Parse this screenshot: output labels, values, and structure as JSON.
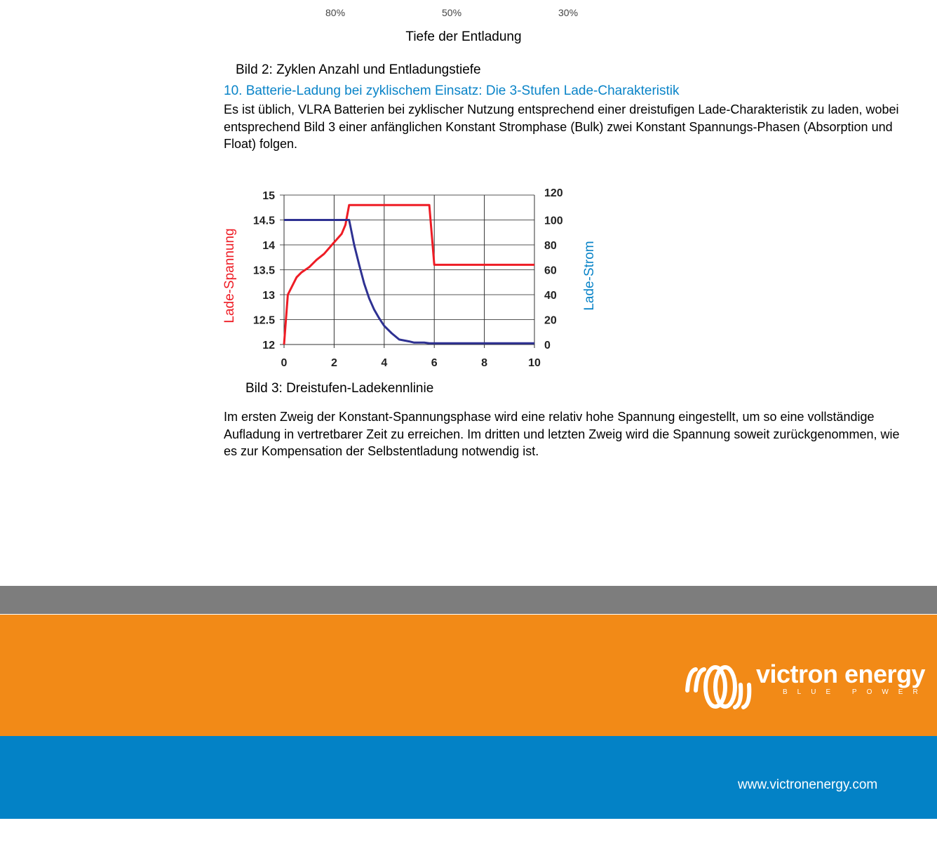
{
  "previous_chart": {
    "tick_labels": [
      "80%",
      "50%",
      "30%"
    ],
    "xlabel": "Tiefe der Entladung",
    "caption": "Bild 2: Zyklen Anzahl und Entladungstiefe"
  },
  "section": {
    "heading": "10. Batterie-Ladung bei zyklischem Einsatz: Die 3-Stufen Lade-Charakteristik",
    "paragraph1": "Es ist üblich, VLRA Batterien bei zyklischer Nutzung entsprechend einer dreistufigen Lade-Charakteristik zu laden, wobei entsprechend Bild 3 einer anfänglichen Konstant Stromphase (Bulk) zwei Konstant Spannungs-Phasen (Absorption und Float) folgen.",
    "caption3": "Bild 3: Dreistufen-Ladekennlinie",
    "paragraph2": "Im ersten Zweig der Konstant-Spannungsphase wird eine relativ hohe Spannung eingestellt, um so eine vollständige Aufladung in vertretbarer Zeit zu erreichen. Im dritten und letzten Zweig wird die Spannung soweit zurückgenommen, wie es zur Kompensation der Selbstentladung notwendig ist."
  },
  "chart_data": {
    "type": "line",
    "title": "",
    "xlabel": "",
    "ylabel": "Lade-Spannung",
    "y2label": "Lade-Strom",
    "xlim": [
      0,
      10
    ],
    "ylim": [
      12,
      15
    ],
    "y2lim": [
      0,
      120
    ],
    "x_ticks": [
      "0",
      "2",
      "4",
      "6",
      "8",
      "10"
    ],
    "y_ticks": [
      "12",
      "12.5",
      "13",
      "13.5",
      "14",
      "14.5",
      "15"
    ],
    "y2_ticks": [
      "0",
      "20",
      "40",
      "60",
      "80",
      "100",
      "120"
    ],
    "grid": true,
    "series": [
      {
        "axis": "left",
        "color": "#ee1c25",
        "x": [
          0,
          0.15,
          0.5,
          0.7,
          1.0,
          1.3,
          1.6,
          2.0,
          2.3,
          2.45,
          2.6,
          5.8,
          6.0,
          10
        ],
        "y": [
          12,
          13,
          13.35,
          13.45,
          13.55,
          13.7,
          13.82,
          14.05,
          14.22,
          14.4,
          14.8,
          14.8,
          13.6,
          13.6
        ]
      },
      {
        "axis": "right",
        "color": "#2e3192",
        "x": [
          0,
          2.6,
          2.8,
          3.0,
          3.2,
          3.4,
          3.6,
          3.8,
          4.0,
          4.3,
          4.6,
          5.0,
          5.2,
          5.6,
          5.8,
          6.0,
          10
        ],
        "y": [
          100,
          100,
          80,
          64,
          49,
          37,
          28,
          21,
          15,
          9,
          4,
          2.5,
          1.5,
          1.5,
          1,
          1,
          1
        ]
      }
    ]
  },
  "footer": {
    "brand": "victron energy",
    "tagline": "BLUE POWER",
    "url": "www.victronenergy.com",
    "colors": {
      "gray": "#7d7d7d",
      "orange": "#f28a17",
      "blue": "#0382c6"
    }
  }
}
